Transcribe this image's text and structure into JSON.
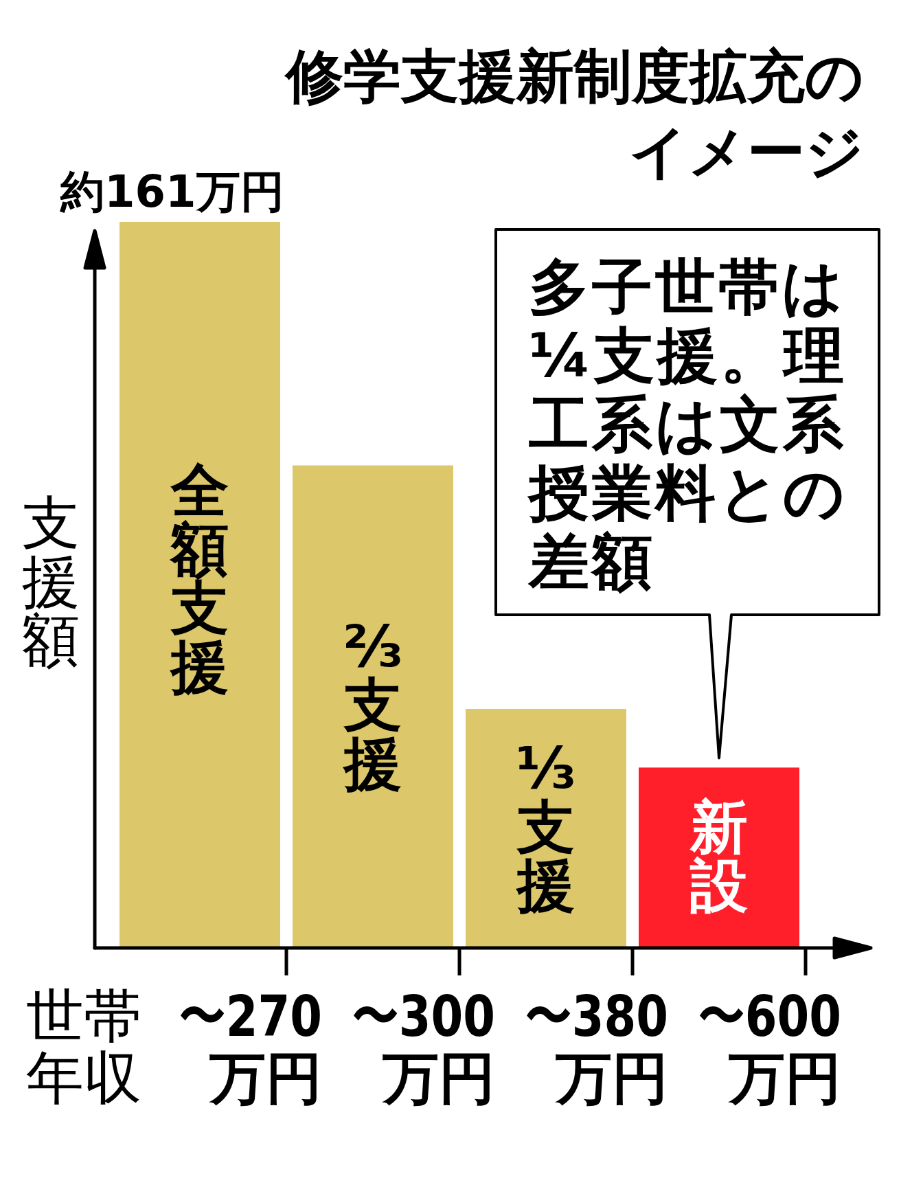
{
  "chart_data": {
    "type": "bar",
    "title": "修学支援新制度拡充のイメージ",
    "xlabel": "世帯年収",
    "ylabel": "支援額",
    "categories": [
      "〜270万円",
      "〜300万円",
      "〜380万円",
      "〜600万円"
    ],
    "values": [
      161,
      107,
      53,
      40
    ],
    "colors": [
      "#dcc76b",
      "#dcc76b",
      "#dcc76b",
      "#ff1f2b"
    ],
    "value_labels": [
      "約161万円",
      null,
      null,
      null
    ],
    "annotations": [
      "全額支援",
      "⅔支援",
      "⅓支援",
      "新設",
      "多子世帯は¼支援。理工系は文系授業料との差額"
    ]
  }
}
